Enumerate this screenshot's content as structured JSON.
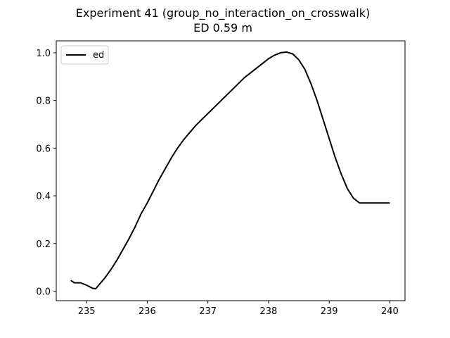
{
  "chart_data": {
    "type": "line",
    "title": "Experiment 41 (group_no_interaction_on_crosswalk)",
    "subtitle": "ED 0.59 m",
    "xlabel": "",
    "ylabel": "",
    "xlim": [
      234.5,
      240.25
    ],
    "ylim": [
      -0.04,
      1.05
    ],
    "x_ticks": [
      235,
      236,
      237,
      238,
      239,
      240
    ],
    "y_ticks": [
      0.0,
      0.2,
      0.4,
      0.6,
      0.8,
      1.0
    ],
    "x_tick_labels": [
      "235",
      "236",
      "237",
      "238",
      "239",
      "240"
    ],
    "y_tick_labels": [
      "0.0",
      "0.2",
      "0.4",
      "0.6",
      "0.8",
      "1.0"
    ],
    "grid": false,
    "legend_position": "top-left",
    "series": [
      {
        "name": "ed",
        "color": "#000000",
        "x": [
          234.74,
          234.8,
          234.9,
          235.0,
          235.1,
          235.15,
          235.2,
          235.3,
          235.4,
          235.5,
          235.6,
          235.7,
          235.8,
          235.9,
          236.0,
          236.1,
          236.2,
          236.3,
          236.4,
          236.5,
          236.6,
          236.7,
          236.8,
          236.9,
          237.0,
          237.1,
          237.2,
          237.3,
          237.4,
          237.5,
          237.6,
          237.7,
          237.8,
          237.9,
          238.0,
          238.1,
          238.2,
          238.3,
          238.4,
          238.5,
          238.6,
          238.7,
          238.8,
          238.9,
          239.0,
          239.1,
          239.2,
          239.3,
          239.4,
          239.5,
          239.6,
          239.7,
          239.8,
          239.9,
          240.0
        ],
        "y": [
          0.045,
          0.035,
          0.035,
          0.025,
          0.012,
          0.01,
          0.025,
          0.055,
          0.09,
          0.13,
          0.175,
          0.22,
          0.27,
          0.325,
          0.37,
          0.42,
          0.47,
          0.515,
          0.56,
          0.6,
          0.635,
          0.665,
          0.695,
          0.72,
          0.745,
          0.77,
          0.795,
          0.82,
          0.845,
          0.87,
          0.895,
          0.915,
          0.935,
          0.955,
          0.975,
          0.99,
          1.0,
          1.003,
          0.995,
          0.97,
          0.93,
          0.87,
          0.8,
          0.72,
          0.64,
          0.56,
          0.49,
          0.43,
          0.39,
          0.37,
          0.37,
          0.37,
          0.37,
          0.37,
          0.37
        ]
      }
    ]
  }
}
